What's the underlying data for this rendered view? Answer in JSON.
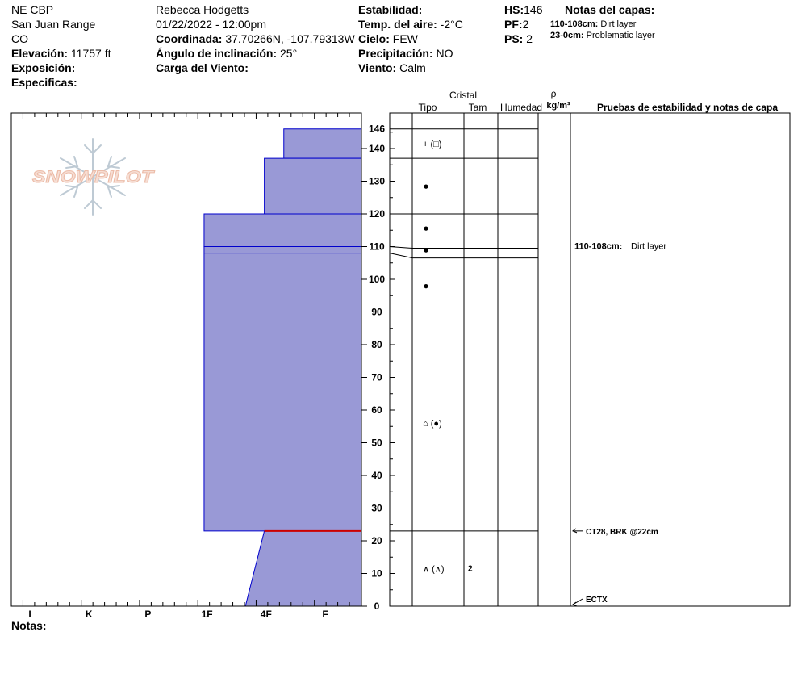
{
  "header": {
    "location": "NE CBP",
    "range": "San Juan Range",
    "state": "CO",
    "elevation_label": "Elevación:",
    "elevation": "11757 ft",
    "aspect_label": "Exposición:",
    "specifics_label": "Especificas:",
    "observer": "Rebecca Hodgetts",
    "datetime": "01/22/2022 - 12:00pm",
    "coord_label": "Coordinada:",
    "coords": "37.70266N, -107.79313W",
    "slope_label": "Ángulo de inclinación:",
    "slope": "25°",
    "windload_label": "Carga del Viento:",
    "stability_label": "Estabilidad:",
    "airtemp_label": "Temp. del aire:",
    "airtemp": "-2°C",
    "sky_label": "Cielo:",
    "sky": "FEW",
    "precip_label": "Precipitación:",
    "precip": "NO",
    "wind_label": "Viento:",
    "wind": "Calm",
    "hs_label": "HS:",
    "hs": "146",
    "pf_label": "PF:",
    "pf": "2",
    "ps_label": "PS:",
    "ps": "2",
    "layer_notes_label": "Notas del capas:",
    "layer_notes": [
      {
        "depth": "110-108cm:",
        "text": "Dirt layer"
      },
      {
        "depth": "23-0cm:",
        "text": "Problematic layer"
      }
    ],
    "notes_label": "Notas:"
  },
  "logo_text": "SNOWPILOT",
  "colors": {
    "layer_fill": "#9999d6",
    "layer_line": "#0000cc",
    "weak_layer": "#cc0000"
  },
  "chart_data": {
    "type": "snow-profile",
    "depth_ticks": [
      0,
      10,
      20,
      30,
      40,
      50,
      60,
      70,
      80,
      90,
      100,
      110,
      120,
      130,
      140,
      146
    ],
    "hardness_labels": [
      "I",
      "K",
      "P",
      "1F",
      "4F",
      "F"
    ],
    "hardness_values": [
      1,
      2,
      3,
      4,
      5,
      6
    ],
    "profile": [
      {
        "top": 146,
        "bottom": 137,
        "hardness": 5.3
      },
      {
        "top": 137,
        "bottom": 120,
        "hardness": 4.97
      },
      {
        "top": 120,
        "bottom": 110,
        "hardness": 3.95
      },
      {
        "top": 110,
        "bottom": 108,
        "hardness": 3.95
      },
      {
        "top": 108,
        "bottom": 90,
        "hardness": 3.95
      },
      {
        "top": 90,
        "bottom": 23,
        "hardness": 3.95
      },
      {
        "top": 23,
        "bottom": 0,
        "hardness_top": 4.97,
        "hardness_bottom": 4.65
      }
    ],
    "weak_layer_depth": 23,
    "layer_boundaries": [
      146,
      137,
      120,
      110,
      108,
      90,
      23
    ],
    "grain_column_header": "Cristal",
    "columns": [
      "Tipo",
      "Tam",
      "Humedad",
      "ρ",
      "kg/m³",
      "Pruebas de estabilidad y notas de capa"
    ],
    "grains": [
      {
        "depth": 141.5,
        "symbol": "+ (□)",
        "size": ""
      },
      {
        "depth": 128.5,
        "symbol": "●",
        "size": ""
      },
      {
        "depth": 115.7,
        "symbol": "●",
        "size": ""
      },
      {
        "depth": 109,
        "symbol": "●",
        "size": ""
      },
      {
        "depth": 98,
        "symbol": "●",
        "size": ""
      },
      {
        "depth": 56,
        "symbol": "⌂ (●)",
        "size": ""
      },
      {
        "depth": 11.5,
        "symbol": "∧ (∧)",
        "size": "2"
      }
    ],
    "layer_note": {
      "depth": 109,
      "label": "110-108cm:",
      "text": "Dirt layer"
    },
    "tests": [
      {
        "depth": 23,
        "text": "CT28, BRK @22cm"
      },
      {
        "depth": 0,
        "text": "ECTX"
      }
    ]
  }
}
